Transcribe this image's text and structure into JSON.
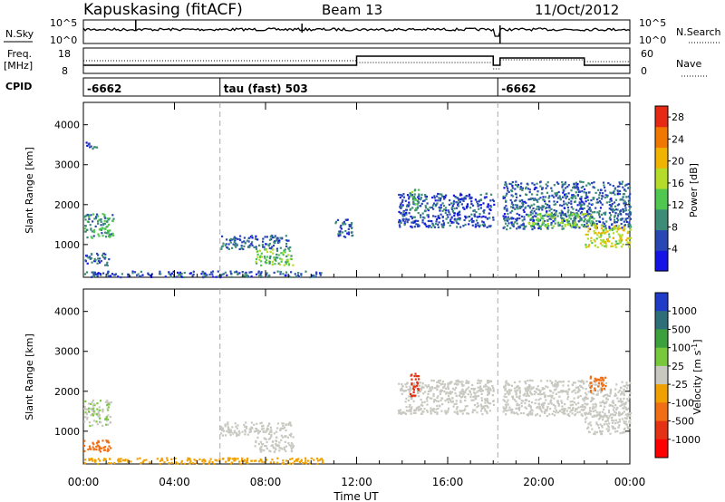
{
  "header": {
    "station": "Kapuskasing (fitACF)",
    "beam": "Beam 13",
    "date": "11/Oct/2012"
  },
  "strips": {
    "nsky_label": "N.Sky",
    "nsearch_label": "N.Search",
    "noise_ticks": [
      "10^5",
      "10^0"
    ],
    "freq_label_1": "Freq.",
    "freq_label_2": "[MHz]",
    "freq_ticks": [
      "18",
      "8"
    ],
    "nave_label": "Nave",
    "nave_ticks": [
      "60",
      "0"
    ],
    "cpid_label": "CPID"
  },
  "cpid_segments": [
    {
      "start_hour": 0.0,
      "end_hour": 6.0,
      "label": "-6662"
    },
    {
      "start_hour": 6.0,
      "end_hour": 18.2,
      "label": "tau (fast) 503"
    },
    {
      "start_hour": 18.2,
      "end_hour": 24.0,
      "label": "-6662"
    }
  ],
  "chart_data": [
    {
      "type": "heatmap",
      "panel": "power",
      "ylabel": "Slant Range [km]",
      "ylim": [
        180,
        4560
      ],
      "yticks": [
        "1000",
        "2000",
        "3000",
        "4000"
      ],
      "xlim_hours": [
        0,
        24
      ],
      "colorbar": {
        "label": "Power [dB]",
        "ticks": [
          "4",
          "8",
          "12",
          "16",
          "20",
          "24",
          "28"
        ],
        "range": [
          0,
          30
        ],
        "colors": [
          "#1414e6",
          "#2846b4",
          "#3c8c78",
          "#50c850",
          "#b4dc28",
          "#f0b400",
          "#f07800",
          "#e62814"
        ]
      },
      "echo_regions": [
        {
          "t0": 0.0,
          "t1": 1.3,
          "r0": 1150,
          "r1": 1800,
          "power": 10
        },
        {
          "t0": 0.0,
          "t1": 1.1,
          "r0": 500,
          "r1": 800,
          "power": 7
        },
        {
          "t0": 0.1,
          "t1": 0.6,
          "r0": 3400,
          "r1": 3600,
          "power": 5
        },
        {
          "t0": 0.0,
          "t1": 10.5,
          "r0": 200,
          "r1": 350,
          "power": 6
        },
        {
          "t0": 6.0,
          "t1": 9.1,
          "r0": 900,
          "r1": 1250,
          "power": 7
        },
        {
          "t0": 7.5,
          "t1": 9.2,
          "r0": 500,
          "r1": 900,
          "power": 13
        },
        {
          "t0": 11.0,
          "t1": 11.8,
          "r0": 1200,
          "r1": 1650,
          "power": 6
        },
        {
          "t0": 13.8,
          "t1": 18.0,
          "r0": 1450,
          "r1": 2300,
          "power": 6
        },
        {
          "t0": 14.3,
          "t1": 14.7,
          "r0": 1900,
          "r1": 2400,
          "power": 12
        },
        {
          "t0": 18.4,
          "t1": 24.0,
          "r0": 1400,
          "r1": 2600,
          "power": 7
        },
        {
          "t0": 19.5,
          "t1": 22.5,
          "r0": 1450,
          "r1": 1800,
          "power": 14
        },
        {
          "t0": 22.0,
          "t1": 24.0,
          "r0": 950,
          "r1": 1500,
          "power": 18
        }
      ]
    },
    {
      "type": "heatmap",
      "panel": "velocity",
      "ylabel": "Slant Range [km]",
      "ylim": [
        180,
        4560
      ],
      "yticks": [
        "1000",
        "2000",
        "3000",
        "4000"
      ],
      "xlim_hours": [
        0,
        24
      ],
      "colorbar": {
        "label": "Velocity [m s^-1]",
        "ticks": [
          "1000",
          "500",
          "100",
          "25",
          "-25",
          "-100",
          "-500",
          "-1000"
        ],
        "colors": [
          "#1e3cc8",
          "#2d6e78",
          "#3ca03c",
          "#78c83c",
          "#c8c8c0",
          "#f0a000",
          "#f06e14",
          "#e63214",
          "#ff0000"
        ]
      },
      "echo_regions": [
        {
          "t0": 0.0,
          "t1": 1.2,
          "r0": 1150,
          "r1": 1800,
          "vel": 20
        },
        {
          "t0": 0.0,
          "t1": 1.2,
          "r0": 500,
          "r1": 800,
          "vel": -150
        },
        {
          "t0": 0.0,
          "t1": 10.5,
          "r0": 200,
          "r1": 350,
          "vel": -60
        },
        {
          "t0": 6.0,
          "t1": 9.1,
          "r0": 900,
          "r1": 1250,
          "vel": 0
        },
        {
          "t0": 7.5,
          "t1": 9.2,
          "r0": 500,
          "r1": 900,
          "vel": 0
        },
        {
          "t0": 13.8,
          "t1": 18.0,
          "r0": 1450,
          "r1": 2300,
          "vel": 0
        },
        {
          "t0": 14.3,
          "t1": 14.7,
          "r0": 1900,
          "r1": 2500,
          "vel": -800
        },
        {
          "t0": 18.4,
          "t1": 24.0,
          "r0": 1400,
          "r1": 2300,
          "vel": 0
        },
        {
          "t0": 22.0,
          "t1": 24.0,
          "r0": 950,
          "r1": 1500,
          "vel": 0
        },
        {
          "t0": 22.2,
          "t1": 23.0,
          "r0": 2000,
          "r1": 2400,
          "vel": -300
        }
      ]
    }
  ],
  "xaxis": {
    "ticks": [
      "00:00",
      "04:00",
      "08:00",
      "12:00",
      "16:00",
      "20:00",
      "00:00"
    ],
    "label": "Time UT"
  }
}
